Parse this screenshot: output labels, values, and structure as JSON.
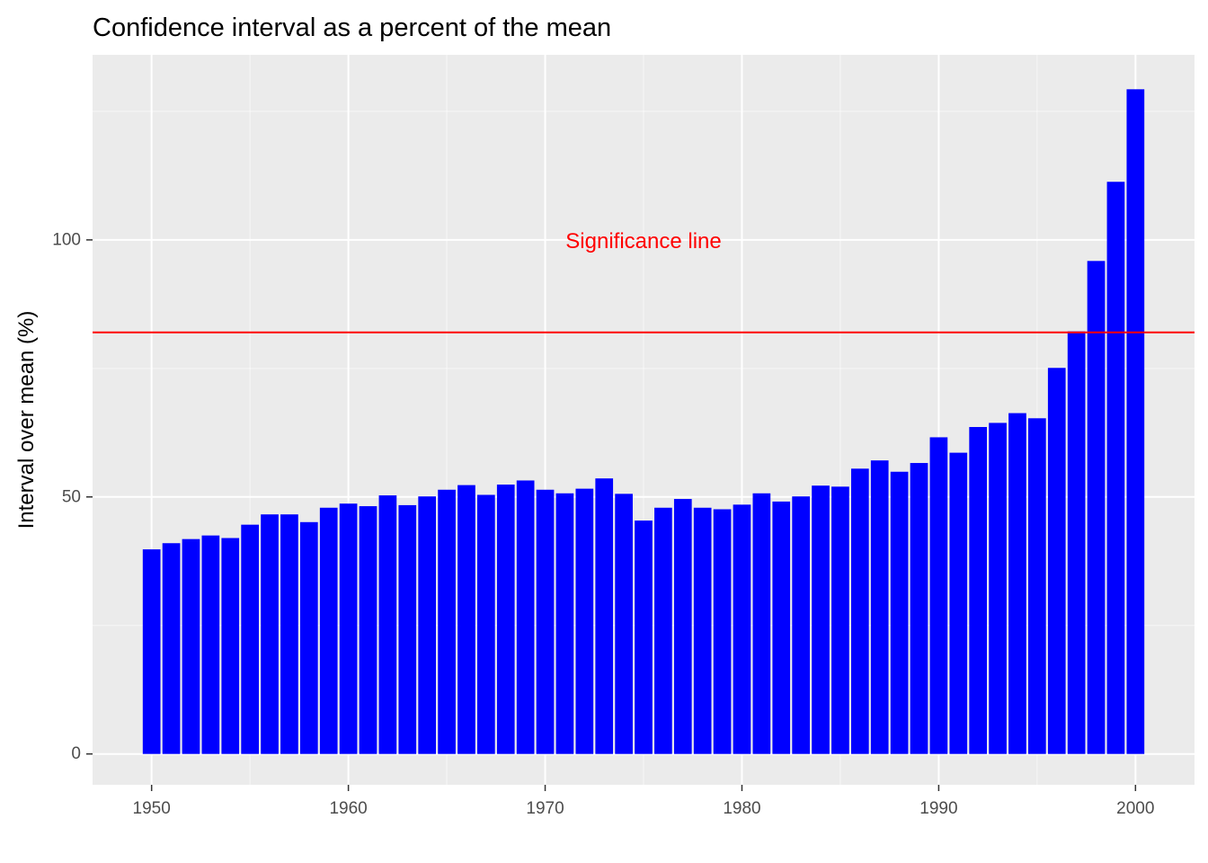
{
  "colors": {
    "panel_background": "#EBEBEB",
    "grid_major": "#FFFFFF",
    "bar_fill": "#0000FF",
    "reference_line": "#FF0000",
    "annotation": "#FF0000",
    "tick_label": "#4D4D4D"
  },
  "chart_data": {
    "type": "bar",
    "title": "Confidence interval as a percent of the mean",
    "xlabel": "",
    "ylabel": "Interval over mean (%)",
    "xlim": [
      1947,
      2003
    ],
    "ylim": [
      -6,
      136
    ],
    "x_ticks": [
      1950,
      1960,
      1970,
      1980,
      1990,
      2000
    ],
    "x_tick_labels": [
      "1950",
      "1960",
      "1970",
      "1980",
      "1990",
      "2000"
    ],
    "y_ticks": [
      0,
      50,
      100
    ],
    "y_tick_labels": [
      "0",
      "50",
      "100"
    ],
    "grid": true,
    "x": [
      1950,
      1951,
      1952,
      1953,
      1954,
      1955,
      1956,
      1957,
      1958,
      1959,
      1960,
      1961,
      1962,
      1963,
      1964,
      1965,
      1966,
      1967,
      1968,
      1969,
      1970,
      1971,
      1972,
      1973,
      1974,
      1975,
      1976,
      1977,
      1978,
      1979,
      1980,
      1981,
      1982,
      1983,
      1984,
      1985,
      1986,
      1987,
      1988,
      1989,
      1990,
      1991,
      1992,
      1993,
      1994,
      1995,
      1996,
      1997,
      1998,
      1999,
      2000
    ],
    "values": [
      39.8,
      41,
      41.8,
      42.5,
      42,
      44.6,
      46.6,
      46.6,
      45.1,
      47.9,
      48.7,
      48.2,
      50.3,
      48.4,
      50.1,
      51.4,
      52.3,
      50.4,
      52.4,
      53.2,
      51.4,
      50.7,
      51.6,
      53.6,
      50.6,
      45.4,
      47.9,
      49.6,
      47.9,
      47.6,
      48.5,
      50.7,
      49.1,
      50.1,
      52.2,
      52.0,
      55.5,
      57.1,
      54.9,
      56.6,
      61.6,
      58.6,
      63.6,
      64.4,
      66.3,
      65.3,
      75.1,
      82.2,
      95.9,
      111.3,
      129.3
    ],
    "reference_line": {
      "y": 82.0,
      "color": "#FF0000"
    },
    "annotations": [
      {
        "text": "Significance line",
        "x": 1975,
        "y": 99.5
      }
    ]
  }
}
